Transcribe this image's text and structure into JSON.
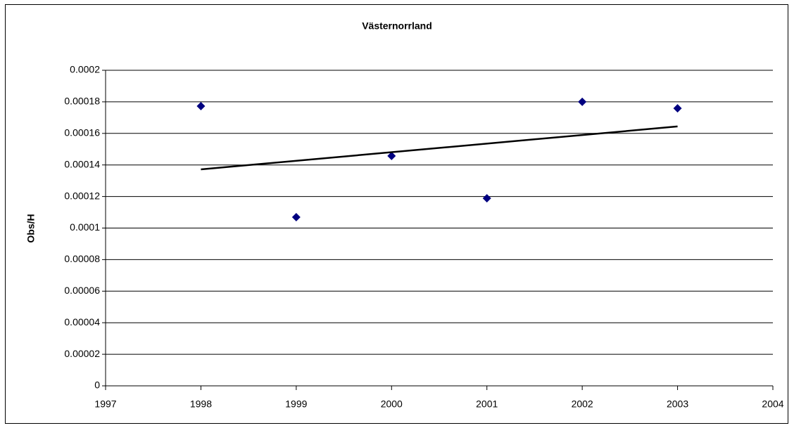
{
  "chart_data": {
    "type": "scatter",
    "title": "Västernorrland",
    "y_label": "Obs/H",
    "x": [
      1998,
      1999,
      2000,
      2001,
      2002,
      2003
    ],
    "values": [
      0.0001773,
      0.0001069,
      0.0001457,
      0.0001189,
      0.00018,
      0.0001759
    ],
    "color": "#000080",
    "trendline": {
      "x": [
        1998,
        2003
      ],
      "values": [
        0.0001372,
        0.0001644
      ],
      "color": "#000000"
    },
    "xlim": [
      1997,
      2004
    ],
    "xticks": [
      1997,
      1998,
      1999,
      2000,
      2001,
      2002,
      2003,
      2004
    ],
    "ylim": [
      0,
      0.0002
    ],
    "yticks": [
      0,
      2e-05,
      4e-05,
      6e-05,
      8e-05,
      0.0001,
      0.00012,
      0.00014,
      0.00016,
      0.00018,
      0.0002
    ],
    "grid": true
  }
}
